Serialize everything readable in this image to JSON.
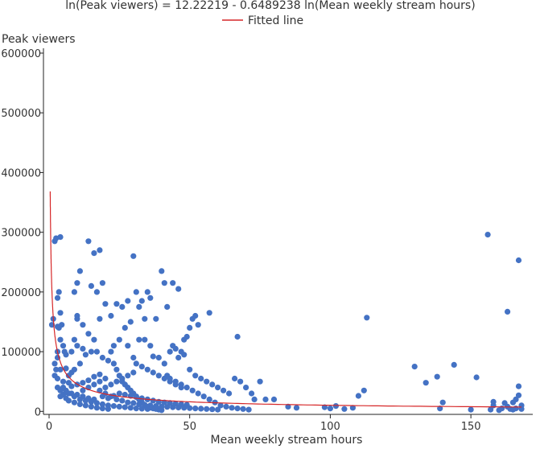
{
  "chart_data": {
    "type": "scatter",
    "title": "ln(Peak viewers) = 12.22219 - 0.6489238 ln(Mean weekly stream hours)",
    "xlabel": "Mean weekly stream hours",
    "ylabel": "Peak viewers",
    "xlim": [
      -2,
      172
    ],
    "ylim": [
      -5000,
      600000
    ],
    "x_ticks": [
      0,
      50,
      100,
      150
    ],
    "x_tick_labels": [
      "0",
      "50",
      "100",
      "150"
    ],
    "y_ticks": [
      0,
      100000,
      200000,
      300000,
      400000,
      500000,
      600000
    ],
    "y_tick_labels": [
      "0",
      "100000",
      "200000",
      "300000",
      "400000",
      "500000",
      "600000"
    ],
    "legend": {
      "entries": [
        "Fitted line"
      ],
      "placement": "top-center"
    },
    "colors": {
      "points": "#4472c4",
      "fitted_line": "#d62728",
      "axis": "#222222"
    },
    "fitted_line": {
      "name": "Fitted line",
      "intercept": 12.22219,
      "slope": -0.6489238,
      "x_range": [
        0.4,
        168
      ]
    },
    "series": [
      {
        "name": "",
        "points": [
          [
            1,
            145000
          ],
          [
            1.5,
            155000
          ],
          [
            2,
            285000
          ],
          [
            2.5,
            290000
          ],
          [
            4,
            292000
          ],
          [
            3,
            190000
          ],
          [
            3.5,
            200000
          ],
          [
            4,
            165000
          ],
          [
            3,
            142000
          ],
          [
            3.5,
            140000
          ],
          [
            4.5,
            145000
          ],
          [
            5,
            110000
          ],
          [
            5.5,
            100000
          ],
          [
            6,
            95000
          ],
          [
            3,
            90000
          ],
          [
            2,
            80000
          ],
          [
            4,
            70000
          ],
          [
            6,
            72000
          ],
          [
            8,
            65000
          ],
          [
            3,
            55000
          ],
          [
            5,
            50000
          ],
          [
            7,
            48000
          ],
          [
            3,
            40000
          ],
          [
            4,
            35000
          ],
          [
            6,
            32000
          ],
          [
            8,
            30000
          ],
          [
            10,
            28000
          ],
          [
            12,
            25000
          ],
          [
            14,
            22000
          ],
          [
            16,
            20000
          ],
          [
            4,
            25000
          ],
          [
            5,
            28000
          ],
          [
            6,
            22000
          ],
          [
            7,
            18000
          ],
          [
            9,
            15000
          ],
          [
            11,
            12000
          ],
          [
            13,
            10000
          ],
          [
            15,
            8000
          ],
          [
            17,
            6000
          ],
          [
            19,
            5000
          ],
          [
            21,
            4000
          ],
          [
            5,
            40000
          ],
          [
            7,
            60000
          ],
          [
            9,
            70000
          ],
          [
            11,
            80000
          ],
          [
            8,
            100000
          ],
          [
            10,
            110000
          ],
          [
            12,
            105000
          ],
          [
            9,
            120000
          ],
          [
            10,
            155000
          ],
          [
            10,
            160000
          ],
          [
            12,
            145000
          ],
          [
            9,
            200000
          ],
          [
            10,
            215000
          ],
          [
            11,
            235000
          ],
          [
            14,
            285000
          ],
          [
            16,
            265000
          ],
          [
            18,
            270000
          ],
          [
            15,
            210000
          ],
          [
            17,
            200000
          ],
          [
            19,
            215000
          ],
          [
            20,
            180000
          ],
          [
            22,
            160000
          ],
          [
            18,
            155000
          ],
          [
            14,
            130000
          ],
          [
            16,
            120000
          ],
          [
            17,
            100000
          ],
          [
            15,
            100000
          ],
          [
            13,
            95000
          ],
          [
            19,
            90000
          ],
          [
            21,
            85000
          ],
          [
            22,
            100000
          ],
          [
            23,
            80000
          ],
          [
            24,
            70000
          ],
          [
            25,
            60000
          ],
          [
            20,
            55000
          ],
          [
            18,
            50000
          ],
          [
            16,
            45000
          ],
          [
            14,
            40000
          ],
          [
            12,
            35000
          ],
          [
            26,
            50000
          ],
          [
            27,
            45000
          ],
          [
            28,
            40000
          ],
          [
            29,
            35000
          ],
          [
            30,
            30000
          ],
          [
            31,
            25000
          ],
          [
            32,
            20000
          ],
          [
            33,
            15000
          ],
          [
            34,
            10000
          ],
          [
            35,
            8000
          ],
          [
            36,
            6000
          ],
          [
            37,
            5000
          ],
          [
            38,
            4000
          ],
          [
            39,
            3000
          ],
          [
            40,
            2000
          ],
          [
            24,
            180000
          ],
          [
            26,
            175000
          ],
          [
            28,
            185000
          ],
          [
            30,
            260000
          ],
          [
            31,
            200000
          ],
          [
            32,
            175000
          ],
          [
            33,
            185000
          ],
          [
            34,
            155000
          ],
          [
            35,
            200000
          ],
          [
            36,
            190000
          ],
          [
            38,
            155000
          ],
          [
            40,
            235000
          ],
          [
            41,
            215000
          ],
          [
            42,
            175000
          ],
          [
            44,
            215000
          ],
          [
            46,
            205000
          ],
          [
            29,
            150000
          ],
          [
            27,
            140000
          ],
          [
            25,
            120000
          ],
          [
            23,
            110000
          ],
          [
            28,
            110000
          ],
          [
            32,
            120000
          ],
          [
            34,
            120000
          ],
          [
            36,
            110000
          ],
          [
            37,
            92000
          ],
          [
            39,
            90000
          ],
          [
            41,
            80000
          ],
          [
            43,
            100000
          ],
          [
            45,
            105000
          ],
          [
            48,
            120000
          ],
          [
            49,
            125000
          ],
          [
            50,
            140000
          ],
          [
            51,
            155000
          ],
          [
            52,
            160000
          ],
          [
            53,
            145000
          ],
          [
            57,
            165000
          ],
          [
            47,
            100000
          ],
          [
            48,
            95000
          ],
          [
            46,
            90000
          ],
          [
            44,
            110000
          ],
          [
            42,
            60000
          ],
          [
            43,
            55000
          ],
          [
            45,
            50000
          ],
          [
            47,
            45000
          ],
          [
            49,
            40000
          ],
          [
            51,
            35000
          ],
          [
            53,
            30000
          ],
          [
            55,
            25000
          ],
          [
            57,
            20000
          ],
          [
            59,
            15000
          ],
          [
            61,
            10000
          ],
          [
            63,
            8000
          ],
          [
            65,
            6000
          ],
          [
            67,
            5000
          ],
          [
            69,
            4000
          ],
          [
            71,
            3000
          ],
          [
            50,
            70000
          ],
          [
            52,
            60000
          ],
          [
            54,
            55000
          ],
          [
            56,
            50000
          ],
          [
            58,
            45000
          ],
          [
            60,
            40000
          ],
          [
            62,
            35000
          ],
          [
            64,
            30000
          ],
          [
            66,
            55000
          ],
          [
            68,
            50000
          ],
          [
            67,
            125000
          ],
          [
            70,
            40000
          ],
          [
            72,
            30000
          ],
          [
            73,
            20000
          ],
          [
            75,
            50000
          ],
          [
            77,
            20000
          ],
          [
            80,
            20000
          ],
          [
            85,
            8000
          ],
          [
            88,
            6000
          ],
          [
            98,
            7000
          ],
          [
            100,
            5000
          ],
          [
            102,
            9000
          ],
          [
            105,
            4000
          ],
          [
            108,
            6000
          ],
          [
            110,
            26000
          ],
          [
            112,
            35000
          ],
          [
            113,
            157000
          ],
          [
            130,
            75000
          ],
          [
            134,
            48000
          ],
          [
            138,
            58000
          ],
          [
            139,
            5000
          ],
          [
            140,
            15000
          ],
          [
            144,
            78000
          ],
          [
            150,
            3000
          ],
          [
            152,
            57000
          ],
          [
            156,
            296000
          ],
          [
            157,
            3000
          ],
          [
            158,
            10000
          ],
          [
            158,
            16000
          ],
          [
            160,
            2000
          ],
          [
            161,
            5000
          ],
          [
            162,
            14000
          ],
          [
            163,
            8000
          ],
          [
            163,
            167000
          ],
          [
            164,
            4000
          ],
          [
            165,
            15000
          ],
          [
            165,
            3000
          ],
          [
            166,
            5000
          ],
          [
            167,
            253000
          ],
          [
            167,
            42000
          ],
          [
            167,
            27000
          ],
          [
            168,
            10000
          ],
          [
            168,
            4000
          ],
          [
            166,
            20000
          ],
          [
            20,
            30000
          ],
          [
            22,
            25000
          ],
          [
            24,
            20000
          ],
          [
            26,
            18000
          ],
          [
            28,
            15000
          ],
          [
            30,
            14000
          ],
          [
            32,
            12000
          ],
          [
            34,
            11000
          ],
          [
            36,
            10000
          ],
          [
            38,
            9000
          ],
          [
            40,
            8000
          ],
          [
            42,
            7500
          ],
          [
            44,
            7000
          ],
          [
            46,
            6500
          ],
          [
            48,
            6000
          ],
          [
            50,
            5500
          ],
          [
            52,
            5000
          ],
          [
            54,
            4500
          ],
          [
            56,
            4000
          ],
          [
            58,
            3500
          ],
          [
            60,
            3000
          ],
          [
            18,
            35000
          ],
          [
            20,
            40000
          ],
          [
            22,
            45000
          ],
          [
            24,
            50000
          ],
          [
            26,
            55000
          ],
          [
            28,
            60000
          ],
          [
            30,
            65000
          ],
          [
            19,
            25000
          ],
          [
            21,
            22000
          ],
          [
            23,
            26000
          ],
          [
            25,
            30000
          ],
          [
            27,
            28000
          ],
          [
            29,
            26000
          ],
          [
            31,
            24000
          ],
          [
            33,
            22000
          ],
          [
            35,
            20000
          ],
          [
            37,
            18000
          ],
          [
            39,
            16000
          ],
          [
            41,
            15000
          ],
          [
            43,
            14000
          ],
          [
            45,
            13000
          ],
          [
            47,
            12000
          ],
          [
            49,
            11000
          ],
          [
            13,
            18000
          ],
          [
            15,
            16000
          ],
          [
            17,
            14000
          ],
          [
            19,
            12000
          ],
          [
            21,
            10000
          ],
          [
            23,
            9000
          ],
          [
            25,
            8000
          ],
          [
            27,
            7000
          ],
          [
            29,
            6000
          ],
          [
            31,
            5000
          ],
          [
            33,
            4500
          ],
          [
            35,
            4000
          ],
          [
            11,
            20000
          ],
          [
            9,
            25000
          ],
          [
            7,
            30000
          ],
          [
            6,
            35000
          ],
          [
            8,
            42000
          ],
          [
            10,
            45000
          ],
          [
            12,
            48000
          ],
          [
            14,
            52000
          ],
          [
            16,
            58000
          ],
          [
            18,
            62000
          ],
          [
            30,
            90000
          ],
          [
            31,
            80000
          ],
          [
            33,
            75000
          ],
          [
            35,
            70000
          ],
          [
            37,
            65000
          ],
          [
            39,
            60000
          ],
          [
            41,
            55000
          ],
          [
            43,
            50000
          ],
          [
            45,
            45000
          ],
          [
            47,
            40000
          ],
          [
            2,
            60000
          ],
          [
            2.5,
            70000
          ],
          [
            3,
            100000
          ],
          [
            4,
            120000
          ]
        ]
      }
    ]
  }
}
